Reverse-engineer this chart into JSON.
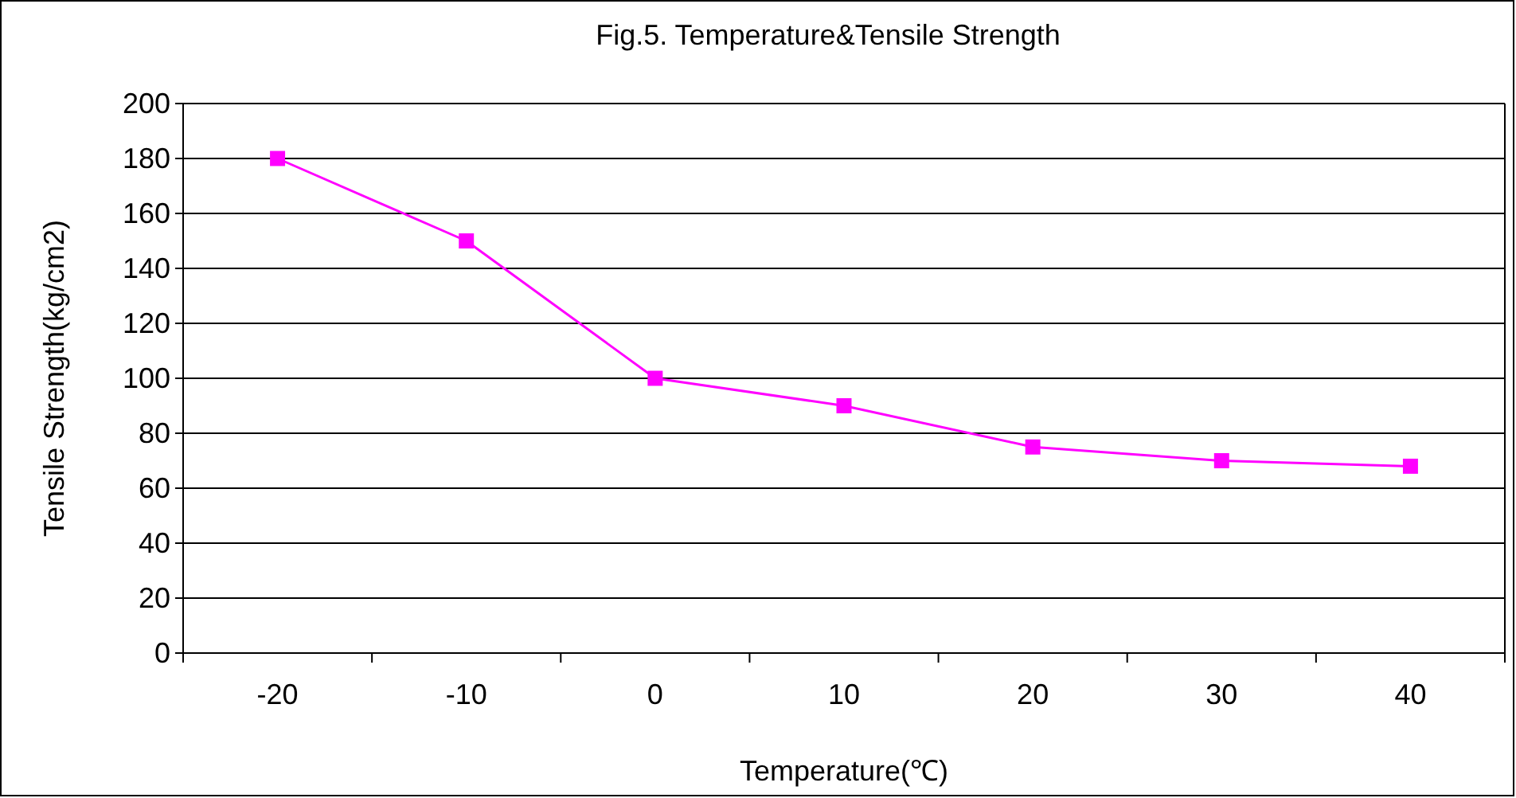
{
  "chart_data": {
    "type": "line",
    "title": "Fig.5. Temperature&Tensile Strength",
    "xlabel": "Temperature(℃)",
    "ylabel": "Tensile Strength(kg/cm2)",
    "categories": [
      "-20",
      "-10",
      "0",
      "10",
      "20",
      "30",
      "40"
    ],
    "series": [
      {
        "color": "#ff00ff",
        "values": [
          180,
          150,
          100,
          90,
          75,
          70,
          68
        ]
      }
    ],
    "ylim": [
      0,
      200
    ],
    "yticks": [
      0,
      20,
      40,
      60,
      80,
      100,
      120,
      140,
      160,
      180,
      200
    ],
    "grid": "y",
    "marker": "square",
    "line_style": "solid"
  }
}
